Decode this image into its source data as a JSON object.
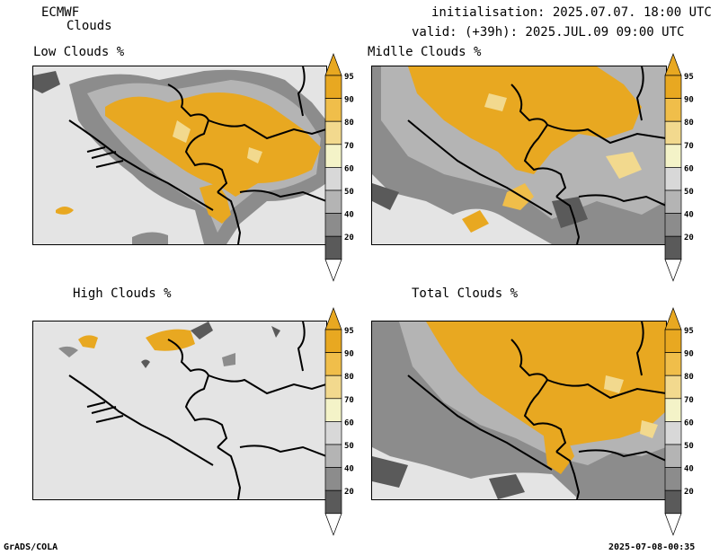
{
  "header": {
    "model": "ECMWF",
    "product": "Clouds",
    "init": "initialisation: 2025.07.07. 18:00 UTC",
    "valid": "valid: (+39h): 2025.JUL.09 09:00 UTC"
  },
  "panels": [
    {
      "title": "Low Clouds %"
    },
    {
      "title": "Midlle Clouds %"
    },
    {
      "title": "High Clouds %"
    },
    {
      "title": "Total Clouds %"
    }
  ],
  "colorbar": {
    "labels": [
      "95",
      "90",
      "80",
      "70",
      "60",
      "50",
      "40",
      "20"
    ],
    "colors": {
      "c95": "#e8a821",
      "c90": "#f0be4a",
      "c80": "#f2d98e",
      "c70": "#f4f3c8",
      "c60": "#d8d8d8",
      "c50": "#b4b4b4",
      "c40": "#8c8c8c",
      "c20": "#5a5a5a",
      "below": "#e4e4e4"
    }
  },
  "footer": {
    "left": "GrADS/COLA",
    "right": "2025-07-08-00:35"
  }
}
